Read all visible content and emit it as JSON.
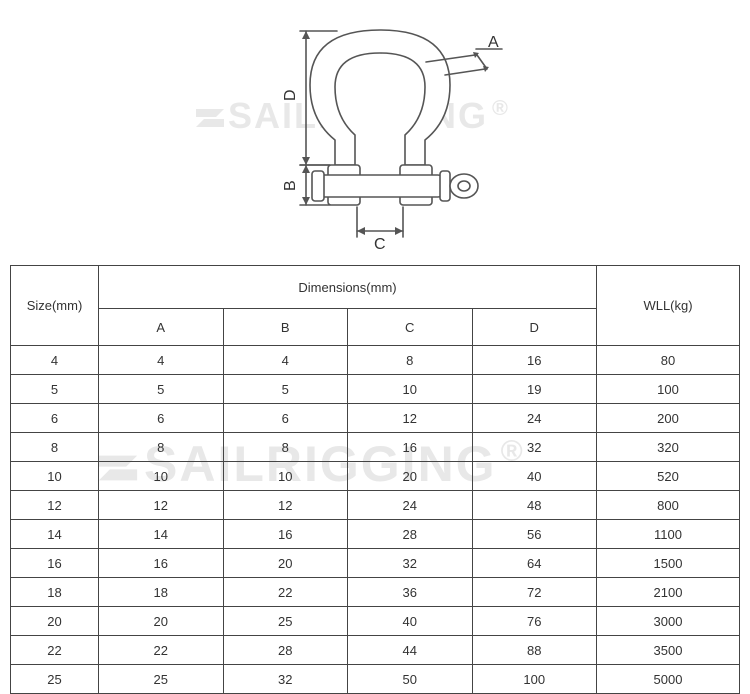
{
  "watermark": {
    "text": "SAILRIGGING",
    "registered": "®",
    "color": "#e8e8e8"
  },
  "diagram": {
    "labels": {
      "A": "A",
      "B": "B",
      "C": "C",
      "D": "D"
    },
    "stroke": "#555555",
    "fill": "#ffffff"
  },
  "table": {
    "headers": {
      "size": "Size(mm)",
      "dimensions": "Dimensions(mm)",
      "wll": "WLL(kg)",
      "sub": [
        "A",
        "B",
        "C",
        "D"
      ]
    },
    "columns": [
      "Size(mm)",
      "A",
      "B",
      "C",
      "D",
      "WLL(kg)"
    ],
    "rows": [
      [
        4,
        4,
        4,
        8,
        16,
        80
      ],
      [
        5,
        5,
        5,
        10,
        19,
        100
      ],
      [
        6,
        6,
        6,
        12,
        24,
        200
      ],
      [
        8,
        8,
        8,
        16,
        32,
        320
      ],
      [
        10,
        10,
        10,
        20,
        40,
        520
      ],
      [
        12,
        12,
        12,
        24,
        48,
        800
      ],
      [
        14,
        14,
        16,
        28,
        56,
        1100
      ],
      [
        16,
        16,
        20,
        32,
        64,
        1500
      ],
      [
        18,
        18,
        22,
        36,
        72,
        2100
      ],
      [
        20,
        20,
        25,
        40,
        76,
        3000
      ],
      [
        22,
        22,
        28,
        44,
        88,
        3500
      ],
      [
        25,
        25,
        32,
        50,
        100,
        5000
      ]
    ],
    "border_color": "#444444",
    "text_color": "#333333",
    "font_size_pt": 10
  }
}
